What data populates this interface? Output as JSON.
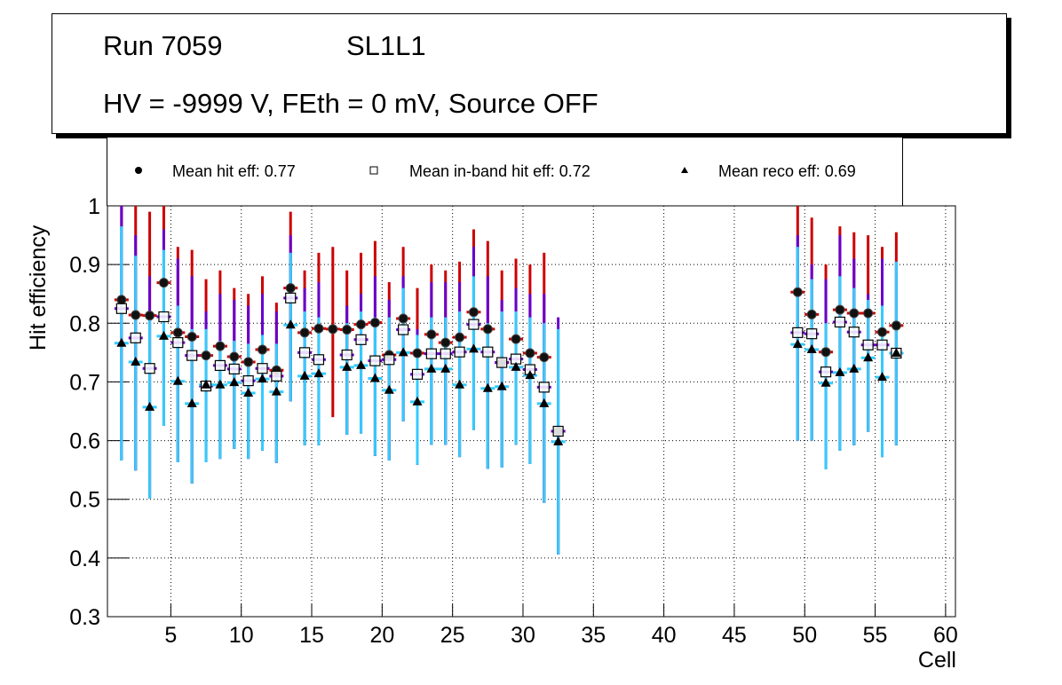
{
  "title": {
    "run": "Run 7059",
    "layer": "SL1L1",
    "conditions": "HV = -9999 V, FEth = 0 mV, Source OFF"
  },
  "legend": [
    {
      "marker": "filled-circle",
      "label": "Mean hit  eff: 0.77"
    },
    {
      "marker": "open-square",
      "label": "Mean in-band hit eff: 0.72"
    },
    {
      "marker": "filled-triangle",
      "label": "Mean reco eff: 0.69"
    }
  ],
  "colors": {
    "hit_error": "#cc0000",
    "inband_error": "#6600cc",
    "reco_error": "#33ccff",
    "marker": "#000000",
    "grid": "#000000"
  },
  "chart_data": {
    "type": "scatter",
    "title": "Run 7059 SL1L1 — HV = -9999 V, FEth = 0 mV, Source OFF",
    "xlabel": "Cell",
    "ylabel": "Hit efficiency",
    "xlim": [
      0.5,
      60.7
    ],
    "ylim": [
      0.3,
      1.0
    ],
    "xticks": [
      5,
      10,
      15,
      20,
      25,
      30,
      35,
      40,
      45,
      50,
      55,
      60
    ],
    "yticks": [
      0.3,
      0.4,
      0.5,
      0.6,
      0.7,
      0.8,
      0.9,
      1
    ],
    "ytick_labels": [
      "0.3",
      "0.4",
      "0.5",
      "0.6",
      "0.7",
      "0.8",
      "0.9",
      "1"
    ],
    "grid": true,
    "legend_position": "top",
    "series": [
      {
        "name": "Mean hit  eff: 0.77",
        "marker": "filled-circle",
        "error_color": "#cc0000"
      },
      {
        "name": "Mean in-band hit eff: 0.72",
        "marker": "open-square",
        "error_color": "#6600cc"
      },
      {
        "name": "Mean reco eff: 0.69",
        "marker": "filled-triangle",
        "error_color": "#33ccff"
      }
    ],
    "points": [
      {
        "cell": 1,
        "hit": 0.84,
        "hit_hi": 1.05,
        "inband": 0.825,
        "inband_hi": 1.05,
        "reco": 0.766,
        "reco_hi": 0.965,
        "lo": 0.566
      },
      {
        "cell": 2,
        "hit": 0.814,
        "hit_hi": 1.05,
        "inband": 0.775,
        "inband_hi": 0.95,
        "reco": 0.734,
        "reco_hi": 0.915,
        "lo": 0.549
      },
      {
        "cell": 3,
        "hit": 0.813,
        "hit_hi": 0.99,
        "inband": 0.723,
        "inband_hi": 0.88,
        "reco": 0.657,
        "reco_hi": 0.815,
        "lo": 0.501
      },
      {
        "cell": 4,
        "hit": 0.869,
        "hit_hi": 1.05,
        "inband": 0.811,
        "inband_hi": 0.96,
        "reco": 0.778,
        "reco_hi": 0.925,
        "lo": 0.625
      },
      {
        "cell": 5,
        "hit": 0.784,
        "hit_hi": 0.93,
        "inband": 0.767,
        "inband_hi": 0.91,
        "reco": 0.701,
        "reco_hi": 0.83,
        "lo": 0.563
      },
      {
        "cell": 6,
        "hit": 0.777,
        "hit_hi": 0.925,
        "inband": 0.745,
        "inband_hi": 0.88,
        "reco": 0.663,
        "reco_hi": 0.79,
        "lo": 0.527
      },
      {
        "cell": 7,
        "hit": 0.745,
        "hit_hi": 0.875,
        "inband": 0.693,
        "inband_hi": 0.82,
        "reco": 0.695,
        "reco_hi": 0.79,
        "lo": 0.563
      },
      {
        "cell": 8,
        "hit": 0.761,
        "hit_hi": 0.89,
        "inband": 0.728,
        "inband_hi": 0.85,
        "reco": 0.695,
        "reco_hi": 0.77,
        "lo": 0.569
      },
      {
        "cell": 9,
        "hit": 0.743,
        "hit_hi": 0.86,
        "inband": 0.722,
        "inband_hi": 0.84,
        "reco": 0.699,
        "reco_hi": 0.77,
        "lo": 0.586
      },
      {
        "cell": 10,
        "hit": 0.734,
        "hit_hi": 0.85,
        "inband": 0.702,
        "inband_hi": 0.83,
        "reco": 0.681,
        "reco_hi": 0.765,
        "lo": 0.569
      },
      {
        "cell": 11,
        "hit": 0.755,
        "hit_hi": 0.88,
        "inband": 0.723,
        "inband_hi": 0.85,
        "reco": 0.705,
        "reco_hi": 0.78,
        "lo": 0.583
      },
      {
        "cell": 12,
        "hit": 0.72,
        "hit_hi": 0.835,
        "inband": 0.71,
        "inband_hi": 0.82,
        "reco": 0.683,
        "reco_hi": 0.765,
        "lo": 0.562
      },
      {
        "cell": 13,
        "hit": 0.86,
        "hit_hi": 0.99,
        "inband": 0.843,
        "inband_hi": 0.95,
        "reco": 0.797,
        "reco_hi": 0.92,
        "lo": 0.667
      },
      {
        "cell": 14,
        "hit": 0.784,
        "hit_hi": 0.89,
        "inband": 0.75,
        "inband_hi": 0.86,
        "reco": 0.71,
        "reco_hi": 0.82,
        "lo": 0.592
      },
      {
        "cell": 15,
        "hit": 0.791,
        "hit_hi": 0.92,
        "inband": 0.738,
        "inband_hi": 0.87,
        "reco": 0.714,
        "reco_hi": 0.81,
        "lo": 0.592
      },
      {
        "cell": 16,
        "hit": 0.79,
        "hit_hi": 0.93,
        "inband": null,
        "inband_hi": null,
        "reco": null,
        "reco_hi": null,
        "lo": 0.64
      },
      {
        "cell": 17,
        "hit": 0.789,
        "hit_hi": 0.89,
        "inband": 0.746,
        "inband_hi": 0.83,
        "reco": 0.725,
        "reco_hi": 0.8,
        "lo": 0.61
      },
      {
        "cell": 18,
        "hit": 0.798,
        "hit_hi": 0.92,
        "inband": 0.772,
        "inband_hi": 0.85,
        "reco": 0.728,
        "reco_hi": 0.82,
        "lo": 0.612
      },
      {
        "cell": 19,
        "hit": 0.801,
        "hit_hi": 0.94,
        "inband": 0.736,
        "inband_hi": 0.88,
        "reco": 0.706,
        "reco_hi": 0.81,
        "lo": 0.574
      },
      {
        "cell": 20,
        "hit": 0.746,
        "hit_hi": 0.87,
        "inband": 0.738,
        "inband_hi": 0.84,
        "reco": 0.686,
        "reco_hi": 0.81,
        "lo": 0.566
      },
      {
        "cell": 21,
        "hit": 0.808,
        "hit_hi": 0.93,
        "inband": 0.789,
        "inband_hi": 0.88,
        "reco": 0.75,
        "reco_hi": 0.86,
        "lo": 0.633
      },
      {
        "cell": 22,
        "hit": 0.749,
        "hit_hi": 0.86,
        "inband": 0.713,
        "inband_hi": 0.79,
        "reco": 0.666,
        "reco_hi": 0.78,
        "lo": 0.559
      },
      {
        "cell": 23,
        "hit": 0.781,
        "hit_hi": 0.9,
        "inband": 0.748,
        "inband_hi": 0.87,
        "reco": 0.722,
        "reco_hi": 0.81,
        "lo": 0.593
      },
      {
        "cell": 24,
        "hit": 0.767,
        "hit_hi": 0.89,
        "inband": 0.748,
        "inband_hi": 0.87,
        "reco": 0.722,
        "reco_hi": 0.81,
        "lo": 0.593
      },
      {
        "cell": 25,
        "hit": 0.776,
        "hit_hi": 0.905,
        "inband": 0.751,
        "inband_hi": 0.87,
        "reco": 0.695,
        "reco_hi": 0.82,
        "lo": 0.572
      },
      {
        "cell": 26,
        "hit": 0.819,
        "hit_hi": 0.96,
        "inband": 0.798,
        "inband_hi": 0.93,
        "reco": 0.756,
        "reco_hi": 0.88,
        "lo": 0.618
      },
      {
        "cell": 27,
        "hit": 0.79,
        "hit_hi": 0.94,
        "inband": 0.751,
        "inband_hi": 0.88,
        "reco": 0.689,
        "reco_hi": 0.8,
        "lo": 0.552
      },
      {
        "cell": 28,
        "hit": 0.733,
        "hit_hi": 0.89,
        "inband": 0.733,
        "inband_hi": 0.84,
        "reco": 0.692,
        "reco_hi": 0.82,
        "lo": 0.554
      },
      {
        "cell": 29,
        "hit": 0.773,
        "hit_hi": 0.91,
        "inband": 0.739,
        "inband_hi": 0.86,
        "reco": 0.725,
        "reco_hi": 0.82,
        "lo": 0.593
      },
      {
        "cell": 30,
        "hit": 0.749,
        "hit_hi": 0.9,
        "inband": 0.721,
        "inband_hi": 0.85,
        "reco": 0.711,
        "reco_hi": 0.81,
        "lo": 0.56
      },
      {
        "cell": 31,
        "hit": 0.742,
        "hit_hi": 0.92,
        "inband": 0.691,
        "inband_hi": 0.85,
        "reco": 0.663,
        "reco_hi": 0.8,
        "lo": 0.494
      },
      {
        "cell": 32,
        "hit": 0.616,
        "hit_hi": 0.62,
        "inband": 0.616,
        "inband_hi": 0.81,
        "reco": 0.598,
        "reco_hi": 0.79,
        "lo": 0.406
      },
      {
        "cell": 49,
        "hit": 0.853,
        "hit_hi": 1.05,
        "inband": 0.784,
        "inband_hi": 0.95,
        "reco": 0.764,
        "reco_hi": 0.93,
        "lo": 0.6
      },
      {
        "cell": 50,
        "hit": 0.815,
        "hit_hi": 0.98,
        "inband": 0.782,
        "inband_hi": 0.9,
        "reco": 0.755,
        "reco_hi": 0.875,
        "lo": 0.6
      },
      {
        "cell": 51,
        "hit": 0.751,
        "hit_hi": 0.9,
        "inband": 0.717,
        "inband_hi": 0.875,
        "reco": 0.698,
        "reco_hi": 0.8,
        "lo": 0.551
      },
      {
        "cell": 52,
        "hit": 0.823,
        "hit_hi": 0.965,
        "inband": 0.802,
        "inband_hi": 0.95,
        "reco": 0.716,
        "reco_hi": 0.88,
        "lo": 0.583
      },
      {
        "cell": 53,
        "hit": 0.817,
        "hit_hi": 0.955,
        "inband": 0.785,
        "inband_hi": 0.91,
        "reco": 0.722,
        "reco_hi": 0.86,
        "lo": 0.592
      },
      {
        "cell": 54,
        "hit": 0.817,
        "hit_hi": 0.95,
        "inband": 0.763,
        "inband_hi": 0.85,
        "reco": 0.741,
        "reco_hi": 0.84,
        "lo": 0.615
      },
      {
        "cell": 55,
        "hit": 0.785,
        "hit_hi": 0.93,
        "inband": 0.763,
        "inband_hi": 0.91,
        "reco": 0.708,
        "reco_hi": 0.83,
        "lo": 0.572
      },
      {
        "cell": 56,
        "hit": 0.796,
        "hit_hi": 0.955,
        "inband": 0.749,
        "inband_hi": 0.905,
        "reco": 0.749,
        "reco_hi": 0.905,
        "lo": 0.592
      }
    ]
  }
}
